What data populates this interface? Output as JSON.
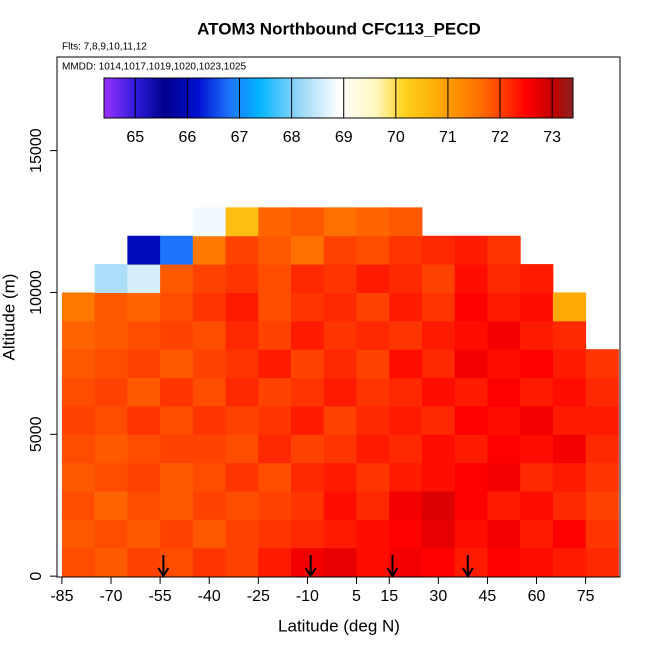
{
  "chart_data": {
    "type": "heatmap",
    "title": "ATOM3 Northbound CFC113_PECD",
    "subtitle": "Flts: 7,8,9,10,11,12",
    "annotation": "MMDD: 1014,1017,1019,1020,1023,1025",
    "xlabel": "Latitude (deg N)",
    "ylabel": "Altitude (m)",
    "xlim": [
      -86.5,
      85.5
    ],
    "xticks": [
      -85,
      -70,
      -55,
      -40,
      -25,
      -10,
      5,
      15,
      30,
      45,
      60,
      75
    ],
    "ylim": [
      -30,
      18300
    ],
    "yticks": [
      0,
      5000,
      10000,
      15000
    ],
    "clim": [
      64.4,
      73.4
    ],
    "cticks": [
      65,
      66,
      67,
      68,
      69,
      70,
      71,
      72,
      73
    ],
    "cell_width": 10,
    "cell_height": 1000,
    "latitudes": [
      -80,
      -70,
      -60,
      -50,
      -40,
      -30,
      -20,
      -10,
      0,
      10,
      20,
      30,
      40,
      50,
      60,
      70,
      80
    ],
    "altitudes": [
      500,
      1500,
      2500,
      3500,
      4500,
      5500,
      6500,
      7500,
      8500,
      9500,
      10500,
      11500,
      12500
    ],
    "z": [
      [
        71.9,
        71.8,
        72.0,
        71.9,
        72.1,
        72.0,
        72.3,
        72.6,
        72.7,
        72.4,
        72.6,
        72.5,
        72.3,
        72.5,
        72.4,
        72.3,
        72.2
      ],
      [
        71.8,
        71.9,
        71.8,
        72.0,
        71.8,
        72.0,
        72.1,
        72.2,
        72.3,
        72.4,
        72.5,
        72.7,
        72.4,
        72.6,
        72.3,
        72.5,
        72.1
      ],
      [
        71.9,
        71.7,
        71.9,
        71.8,
        72.0,
        71.9,
        72.0,
        72.1,
        72.4,
        72.2,
        72.6,
        72.8,
        72.5,
        72.3,
        72.4,
        72.2,
        72.0
      ],
      [
        71.8,
        71.9,
        72.0,
        71.8,
        71.9,
        72.1,
        71.9,
        72.2,
        72.3,
        72.1,
        72.3,
        72.4,
        72.5,
        72.6,
        72.2,
        72.3,
        72.1
      ],
      [
        71.9,
        71.8,
        71.9,
        72.0,
        72.0,
        71.9,
        72.2,
        72.0,
        72.1,
        72.3,
        72.2,
        72.4,
        72.3,
        72.5,
        72.4,
        72.6,
        72.2
      ],
      [
        72.0,
        71.9,
        72.1,
        71.9,
        72.1,
        72.0,
        72.1,
        72.3,
        72.0,
        72.2,
        72.3,
        72.2,
        72.5,
        72.4,
        72.6,
        72.3,
        72.3
      ],
      [
        71.9,
        72.0,
        71.8,
        72.1,
        71.9,
        72.2,
        72.0,
        72.1,
        72.3,
        72.1,
        72.2,
        72.4,
        72.3,
        72.5,
        72.3,
        72.4,
        72.2
      ],
      [
        71.8,
        71.9,
        72.0,
        71.8,
        72.0,
        72.1,
        72.3,
        72.0,
        72.2,
        72.0,
        72.4,
        72.2,
        72.6,
        72.4,
        72.5,
        72.3,
        72.1
      ],
      [
        71.7,
        71.8,
        71.9,
        72.0,
        71.9,
        72.2,
        72.0,
        72.3,
        72.1,
        72.2,
        72.1,
        72.3,
        72.4,
        72.6,
        72.3,
        72.2,
        null
      ],
      [
        71.5,
        71.8,
        71.7,
        71.9,
        72.1,
        72.3,
        71.9,
        72.1,
        72.2,
        72.0,
        72.3,
        72.1,
        72.5,
        72.3,
        72.4,
        70.8,
        null
      ],
      [
        null,
        68.3,
        68.6,
        71.8,
        72.0,
        72.1,
        71.9,
        72.2,
        72.1,
        72.3,
        72.2,
        72.0,
        72.4,
        72.2,
        72.3,
        null,
        null
      ],
      [
        null,
        null,
        66.0,
        66.8,
        71.5,
        72.0,
        71.8,
        71.6,
        72.0,
        71.9,
        72.1,
        72.2,
        72.3,
        72.1,
        null,
        null,
        null
      ],
      [
        null,
        null,
        null,
        null,
        68.8,
        70.5,
        71.7,
        71.8,
        71.6,
        71.7,
        71.8,
        null,
        null,
        null,
        null,
        null,
        null
      ]
    ],
    "arrows": [
      -54,
      -9,
      16,
      39
    ]
  }
}
